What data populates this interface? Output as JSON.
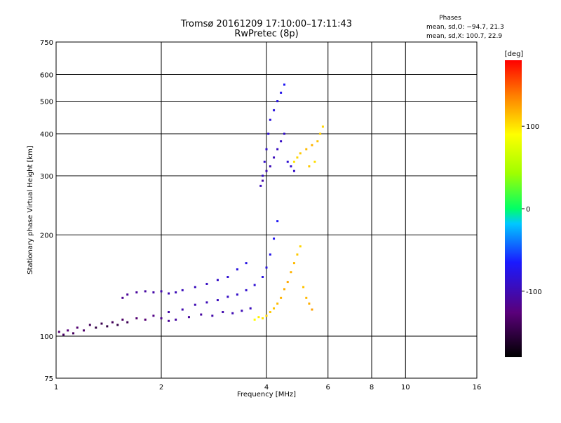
{
  "chart_data": {
    "type": "scatter",
    "title": "Tromsø 20161209 17:10:00–17:11:43",
    "subtitle": "RwPretec (8p)",
    "xlabel": "Frequency [MHz]",
    "ylabel": "Stationary phase Virtual Height [km]",
    "xscale": "log",
    "yscale": "log",
    "xlim": [
      1,
      16
    ],
    "ylim": [
      75,
      750
    ],
    "xticks": [
      1,
      2,
      4,
      6,
      8,
      10,
      16
    ],
    "yticks": [
      75,
      100,
      200,
      300,
      400,
      500,
      600,
      750
    ],
    "grid": true,
    "stats": {
      "heading": "Phases",
      "line_o": "mean, sd,O: −94.7, 21.3",
      "line_x": "mean, sd,X: 100.7, 22.9"
    },
    "colorbar": {
      "label": "[deg]",
      "range": [
        -180,
        180
      ],
      "ticks": [
        100,
        0,
        -100
      ]
    },
    "series": [
      {
        "values": [
          [
            1.02,
            103,
            -130
          ],
          [
            1.05,
            101,
            -135
          ],
          [
            1.08,
            104,
            -125
          ],
          [
            1.12,
            102,
            -138
          ],
          [
            1.15,
            106,
            -130
          ],
          [
            1.2,
            104,
            -132
          ],
          [
            1.25,
            108,
            -140
          ],
          [
            1.3,
            106,
            -150
          ],
          [
            1.35,
            109,
            -145
          ],
          [
            1.4,
            107,
            -150
          ],
          [
            1.45,
            110,
            -140
          ],
          [
            1.5,
            108,
            -148
          ],
          [
            1.55,
            112,
            -135
          ],
          [
            1.6,
            110,
            -142
          ],
          [
            1.7,
            113,
            -130
          ],
          [
            1.8,
            112,
            -128
          ],
          [
            1.9,
            115,
            -120
          ],
          [
            2.0,
            113,
            -115
          ],
          [
            2.1,
            111,
            -112
          ],
          [
            2.2,
            112,
            -108
          ],
          [
            2.4,
            114,
            -110
          ],
          [
            2.6,
            116,
            -108
          ],
          [
            2.8,
            115,
            -104
          ],
          [
            3.0,
            118,
            -102
          ],
          [
            3.2,
            117,
            -100
          ],
          [
            3.4,
            119,
            -98
          ],
          [
            3.6,
            121,
            -96
          ]
        ]
      },
      {
        "values": [
          [
            1.55,
            130,
            -115
          ],
          [
            1.6,
            133,
            -112
          ],
          [
            1.7,
            135,
            -110
          ],
          [
            1.8,
            136,
            -108
          ],
          [
            1.9,
            135,
            -105
          ],
          [
            2.0,
            136,
            -103
          ],
          [
            2.1,
            134,
            -100
          ],
          [
            2.2,
            135,
            -98
          ],
          [
            2.3,
            137,
            -96
          ],
          [
            2.5,
            140,
            -95
          ],
          [
            2.7,
            143,
            -93
          ],
          [
            2.9,
            147,
            -90
          ],
          [
            3.1,
            150,
            -85
          ],
          [
            3.3,
            158,
            -80
          ],
          [
            3.5,
            165,
            -78
          ]
        ]
      },
      {
        "values": [
          [
            2.1,
            118,
            -105
          ],
          [
            2.3,
            120,
            -102
          ],
          [
            2.5,
            124,
            -100
          ],
          [
            2.7,
            126,
            -98
          ],
          [
            2.9,
            128,
            -95
          ],
          [
            3.1,
            131,
            -92
          ],
          [
            3.3,
            133,
            -90
          ],
          [
            3.5,
            137,
            -88
          ],
          [
            3.7,
            142,
            -85
          ],
          [
            3.9,
            150,
            -80
          ],
          [
            4.0,
            160,
            -78
          ],
          [
            4.1,
            175,
            -75
          ],
          [
            4.2,
            195,
            -72
          ],
          [
            4.3,
            220,
            -70
          ]
        ]
      },
      {
        "values": [
          [
            3.85,
            280,
            -95
          ],
          [
            3.9,
            300,
            -92
          ],
          [
            3.95,
            330,
            -90
          ],
          [
            4.0,
            360,
            -88
          ],
          [
            4.05,
            400,
            -85
          ],
          [
            4.1,
            440,
            -82
          ],
          [
            4.2,
            470,
            -80
          ],
          [
            4.3,
            500,
            -78
          ],
          [
            4.4,
            530,
            -75
          ],
          [
            4.5,
            560,
            -70
          ],
          [
            3.9,
            290,
            -105
          ],
          [
            4.0,
            310,
            -100
          ],
          [
            4.1,
            320,
            -98
          ],
          [
            4.2,
            340,
            -96
          ],
          [
            4.3,
            360,
            -94
          ],
          [
            4.4,
            380,
            -92
          ],
          [
            4.5,
            400,
            -90
          ],
          [
            4.6,
            330,
            -85
          ],
          [
            4.7,
            320,
            -88
          ],
          [
            4.8,
            310,
            -90
          ]
        ]
      },
      {
        "values": [
          [
            3.7,
            112,
            90
          ],
          [
            3.8,
            114,
            95
          ],
          [
            3.9,
            113,
            100
          ],
          [
            4.0,
            115,
            105
          ],
          [
            4.1,
            118,
            110
          ],
          [
            4.2,
            121,
            112
          ],
          [
            4.3,
            125,
            115
          ],
          [
            4.4,
            130,
            118
          ],
          [
            4.5,
            138,
            120
          ],
          [
            4.6,
            145,
            122
          ],
          [
            4.7,
            155,
            118
          ],
          [
            4.8,
            165,
            115
          ],
          [
            4.9,
            175,
            110
          ],
          [
            5.0,
            185,
            105
          ],
          [
            5.1,
            140,
            112
          ],
          [
            5.2,
            130,
            116
          ],
          [
            5.3,
            125,
            120
          ],
          [
            5.4,
            120,
            125
          ]
        ]
      },
      {
        "values": [
          [
            4.8,
            330,
            100
          ],
          [
            4.9,
            340,
            105
          ],
          [
            5.0,
            350,
            110
          ],
          [
            5.2,
            360,
            115
          ],
          [
            5.4,
            370,
            118
          ],
          [
            5.6,
            380,
            112
          ],
          [
            5.7,
            400,
            108
          ],
          [
            5.8,
            420,
            105
          ],
          [
            5.5,
            330,
            102
          ],
          [
            5.3,
            320,
            110
          ]
        ]
      }
    ]
  }
}
